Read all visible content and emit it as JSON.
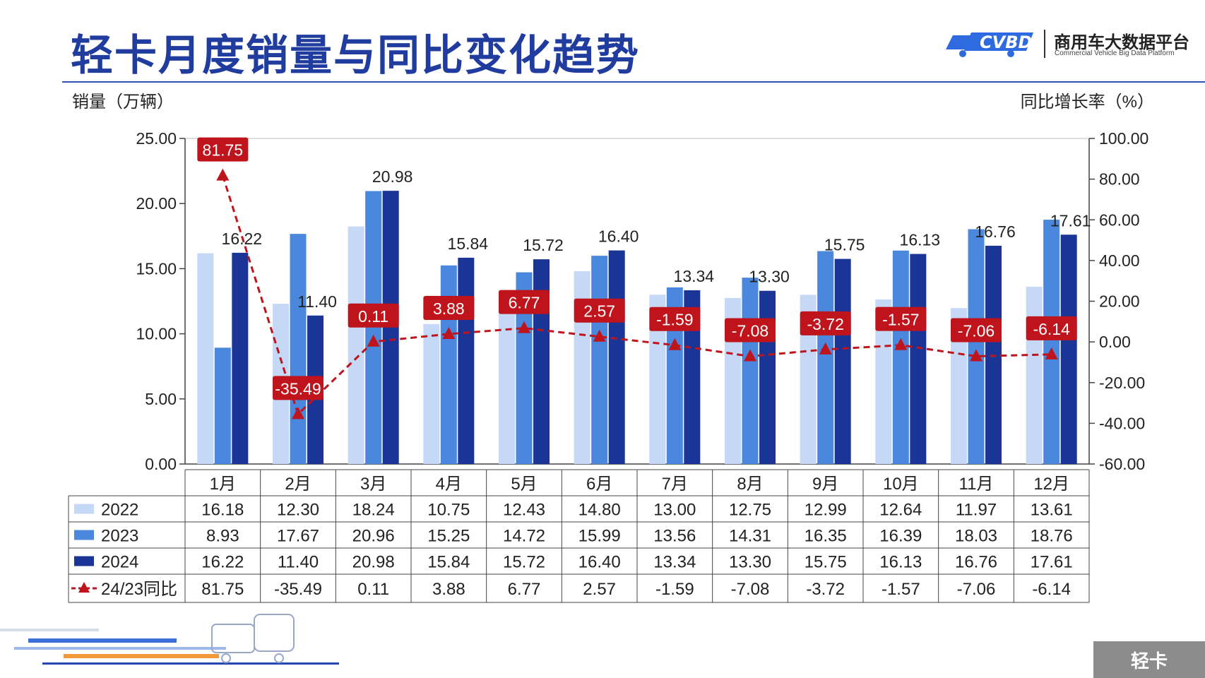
{
  "header": {
    "title": "轻卡月度销量与同比变化趋势",
    "logo_cn": "商用车大数据平台",
    "logo_en": "Commercial Vehicle Big Data Platform",
    "logo_icon": "cvbd-truck-logo-icon"
  },
  "footer": {
    "tag": "轻卡"
  },
  "colors": {
    "s2022": "#c5d8f5",
    "s2023": "#4a88de",
    "s2024": "#1a3596",
    "yoy": "#c0141c",
    "title": "#1f3c9e"
  },
  "chart_data": {
    "type": "bar",
    "ylabel_left": "销量（万辆）",
    "ylabel_right": "同比增长率（%）",
    "categories": [
      "1月",
      "2月",
      "3月",
      "4月",
      "5月",
      "6月",
      "7月",
      "8月",
      "9月",
      "10月",
      "11月",
      "12月"
    ],
    "y_left": {
      "min": 0,
      "max": 25,
      "ticks": [
        "0.00",
        "5.00",
        "10.00",
        "15.00",
        "20.00",
        "25.00"
      ]
    },
    "y_right": {
      "min": -60,
      "max": 100,
      "ticks": [
        "-60.00",
        "-40.00",
        "-20.00",
        "0.00",
        "20.00",
        "40.00",
        "60.00",
        "80.00",
        "100.00"
      ]
    },
    "series": [
      {
        "name": "2022",
        "type": "bar",
        "values": [
          16.18,
          12.3,
          18.24,
          10.75,
          12.43,
          14.8,
          13.0,
          12.75,
          12.99,
          12.64,
          11.97,
          13.61
        ],
        "labels": [
          "16.18",
          "12.30",
          "18.24",
          "10.75",
          "12.43",
          "14.80",
          "13.00",
          "12.75",
          "12.99",
          "12.64",
          "11.97",
          "13.61"
        ]
      },
      {
        "name": "2023",
        "type": "bar",
        "values": [
          8.93,
          17.67,
          20.96,
          15.25,
          14.72,
          15.99,
          13.56,
          14.31,
          16.35,
          16.39,
          18.03,
          18.76
        ],
        "labels": [
          "8.93",
          "17.67",
          "20.96",
          "15.25",
          "14.72",
          "15.99",
          "13.56",
          "14.31",
          "16.35",
          "16.39",
          "18.03",
          "18.76"
        ]
      },
      {
        "name": "2024",
        "type": "bar",
        "values": [
          16.22,
          11.4,
          20.98,
          15.84,
          15.72,
          16.4,
          13.34,
          13.3,
          15.75,
          16.13,
          16.76,
          17.61
        ],
        "labels": [
          "16.22",
          "11.40",
          "20.98",
          "15.84",
          "15.72",
          "16.40",
          "13.34",
          "13.30",
          "15.75",
          "16.13",
          "16.76",
          "17.61"
        ]
      },
      {
        "name": "24/23同比",
        "type": "line",
        "axis": "right",
        "values": [
          81.75,
          -35.49,
          0.11,
          3.88,
          6.77,
          2.57,
          -1.59,
          -7.08,
          -3.72,
          -1.57,
          -7.06,
          -6.14
        ],
        "labels": [
          "81.75",
          "-35.49",
          "0.11",
          "3.88",
          "6.77",
          "2.57",
          "-1.59",
          "-7.08",
          "-3.72",
          "-1.57",
          "-7.06",
          "-6.14"
        ]
      }
    ]
  }
}
